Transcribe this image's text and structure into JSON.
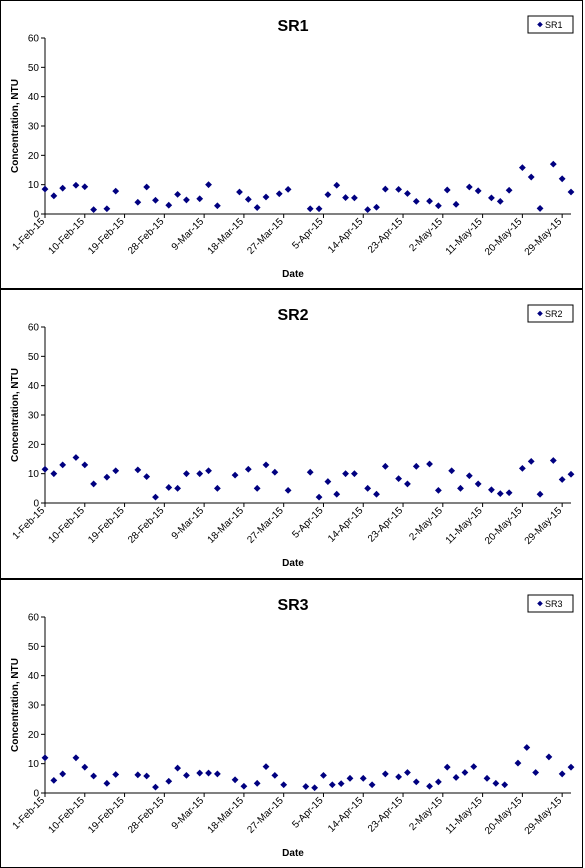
{
  "x_ticks": [
    "1-Feb-15",
    "10-Feb-15",
    "19-Feb-15",
    "28-Feb-15",
    "9-Mar-15",
    "18-Mar-15",
    "27-Mar-15",
    "5-Apr-15",
    "14-Apr-15",
    "23-Apr-15",
    "2-May-15",
    "11-May-15",
    "20-May-15",
    "29-May-15"
  ],
  "y_ticks": [
    "0",
    "10",
    "20",
    "30",
    "40",
    "50",
    "60"
  ],
  "colors": {
    "marker": "#000080"
  },
  "chart_data": [
    {
      "type": "scatter",
      "title": "SR1",
      "xlabel": "Date",
      "ylabel": "Concentration, NTU",
      "ylim": [
        0,
        60
      ],
      "xlim": [
        "2015-02-01",
        "2015-05-31"
      ],
      "legend": "top-right",
      "grid": false,
      "series": [
        {
          "name": "SR1",
          "points": [
            [
              "2015-02-01",
              8.5
            ],
            [
              "2015-02-03",
              6.2
            ],
            [
              "2015-02-05",
              8.8
            ],
            [
              "2015-02-08",
              9.8
            ],
            [
              "2015-02-10",
              9.3
            ],
            [
              "2015-02-12",
              1.5
            ],
            [
              "2015-02-15",
              1.8
            ],
            [
              "2015-02-17",
              7.8
            ],
            [
              "2015-02-22",
              4.0
            ],
            [
              "2015-02-24",
              9.2
            ],
            [
              "2015-02-26",
              4.7
            ],
            [
              "2015-03-01",
              3.0
            ],
            [
              "2015-03-03",
              6.7
            ],
            [
              "2015-03-05",
              4.8
            ],
            [
              "2015-03-08",
              5.2
            ],
            [
              "2015-03-10",
              10.0
            ],
            [
              "2015-03-12",
              2.8
            ],
            [
              "2015-03-17",
              7.5
            ],
            [
              "2015-03-19",
              5.0
            ],
            [
              "2015-03-21",
              2.2
            ],
            [
              "2015-03-23",
              5.8
            ],
            [
              "2015-03-26",
              6.9
            ],
            [
              "2015-03-28",
              8.4
            ],
            [
              "2015-04-02",
              1.8
            ],
            [
              "2015-04-04",
              1.8
            ],
            [
              "2015-04-06",
              6.6
            ],
            [
              "2015-04-08",
              9.8
            ],
            [
              "2015-04-10",
              5.6
            ],
            [
              "2015-04-12",
              5.5
            ],
            [
              "2015-04-15",
              1.5
            ],
            [
              "2015-04-17",
              2.3
            ],
            [
              "2015-04-19",
              8.5
            ],
            [
              "2015-04-22",
              8.4
            ],
            [
              "2015-04-24",
              7.0
            ],
            [
              "2015-04-26",
              4.3
            ],
            [
              "2015-04-29",
              4.4
            ],
            [
              "2015-05-01",
              2.8
            ],
            [
              "2015-05-03",
              8.2
            ],
            [
              "2015-05-05",
              3.3
            ],
            [
              "2015-05-08",
              9.2
            ],
            [
              "2015-05-10",
              7.9
            ],
            [
              "2015-05-13",
              5.5
            ],
            [
              "2015-05-15",
              4.3
            ],
            [
              "2015-05-17",
              8.1
            ],
            [
              "2015-05-20",
              15.8
            ],
            [
              "2015-05-22",
              12.6
            ],
            [
              "2015-05-24",
              1.9
            ],
            [
              "2015-05-27",
              17.0
            ],
            [
              "2015-05-29",
              12.0
            ],
            [
              "2015-05-31",
              7.5
            ]
          ]
        }
      ]
    },
    {
      "type": "scatter",
      "title": "SR2",
      "xlabel": "Date",
      "ylabel": "Concentration, NTU",
      "ylim": [
        0,
        60
      ],
      "xlim": [
        "2015-02-01",
        "2015-05-31"
      ],
      "legend": "top-right",
      "grid": false,
      "series": [
        {
          "name": "SR2",
          "points": [
            [
              "2015-02-01",
              11.5
            ],
            [
              "2015-02-03",
              10.0
            ],
            [
              "2015-02-05",
              13.0
            ],
            [
              "2015-02-08",
              15.5
            ],
            [
              "2015-02-10",
              13.0
            ],
            [
              "2015-02-12",
              6.5
            ],
            [
              "2015-02-15",
              8.8
            ],
            [
              "2015-02-17",
              11.0
            ],
            [
              "2015-02-22",
              11.3
            ],
            [
              "2015-02-24",
              9.0
            ],
            [
              "2015-02-26",
              2.0
            ],
            [
              "2015-03-01",
              5.3
            ],
            [
              "2015-03-03",
              5.0
            ],
            [
              "2015-03-05",
              10.0
            ],
            [
              "2015-03-08",
              10.0
            ],
            [
              "2015-03-10",
              11.0
            ],
            [
              "2015-03-12",
              5.0
            ],
            [
              "2015-03-16",
              9.5
            ],
            [
              "2015-03-19",
              11.5
            ],
            [
              "2015-03-21",
              5.0
            ],
            [
              "2015-03-23",
              13.0
            ],
            [
              "2015-03-25",
              10.5
            ],
            [
              "2015-03-28",
              4.3
            ],
            [
              "2015-04-02",
              10.5
            ],
            [
              "2015-04-04",
              2.0
            ],
            [
              "2015-04-06",
              7.3
            ],
            [
              "2015-04-08",
              3.0
            ],
            [
              "2015-04-10",
              10.0
            ],
            [
              "2015-04-12",
              10.0
            ],
            [
              "2015-04-15",
              5.0
            ],
            [
              "2015-04-17",
              3.0
            ],
            [
              "2015-04-19",
              12.5
            ],
            [
              "2015-04-22",
              8.3
            ],
            [
              "2015-04-24",
              6.5
            ],
            [
              "2015-04-26",
              12.5
            ],
            [
              "2015-04-29",
              13.3
            ],
            [
              "2015-05-01",
              4.3
            ],
            [
              "2015-05-04",
              11.0
            ],
            [
              "2015-05-06",
              5.0
            ],
            [
              "2015-05-08",
              9.3
            ],
            [
              "2015-05-10",
              6.5
            ],
            [
              "2015-05-13",
              4.5
            ],
            [
              "2015-05-15",
              3.2
            ],
            [
              "2015-05-17",
              3.5
            ],
            [
              "2015-05-20",
              11.8
            ],
            [
              "2015-05-22",
              14.2
            ],
            [
              "2015-05-24",
              3.0
            ],
            [
              "2015-05-27",
              14.5
            ],
            [
              "2015-05-29",
              8.0
            ],
            [
              "2015-05-31",
              9.8
            ]
          ]
        }
      ]
    },
    {
      "type": "scatter",
      "title": "SR3",
      "xlabel": "Date",
      "ylabel": "Concentration, NTU",
      "ylim": [
        0,
        60
      ],
      "xlim": [
        "2015-02-01",
        "2015-05-31"
      ],
      "legend": "top-right",
      "grid": false,
      "series": [
        {
          "name": "SR3",
          "points": [
            [
              "2015-02-01",
              12.0
            ],
            [
              "2015-02-03",
              4.3
            ],
            [
              "2015-02-05",
              6.5
            ],
            [
              "2015-02-08",
              12.0
            ],
            [
              "2015-02-10",
              8.8
            ],
            [
              "2015-02-12",
              5.8
            ],
            [
              "2015-02-15",
              3.3
            ],
            [
              "2015-02-17",
              6.3
            ],
            [
              "2015-02-22",
              6.2
            ],
            [
              "2015-02-24",
              5.8
            ],
            [
              "2015-02-26",
              2.0
            ],
            [
              "2015-03-01",
              4.0
            ],
            [
              "2015-03-03",
              8.5
            ],
            [
              "2015-03-05",
              6.0
            ],
            [
              "2015-03-08",
              6.8
            ],
            [
              "2015-03-10",
              6.8
            ],
            [
              "2015-03-12",
              6.5
            ],
            [
              "2015-03-16",
              4.5
            ],
            [
              "2015-03-18",
              2.3
            ],
            [
              "2015-03-21",
              3.3
            ],
            [
              "2015-03-23",
              9.0
            ],
            [
              "2015-03-25",
              6.0
            ],
            [
              "2015-03-27",
              2.8
            ],
            [
              "2015-04-01",
              2.2
            ],
            [
              "2015-04-03",
              1.8
            ],
            [
              "2015-04-05",
              6.0
            ],
            [
              "2015-04-07",
              2.8
            ],
            [
              "2015-04-09",
              3.2
            ],
            [
              "2015-04-11",
              5.0
            ],
            [
              "2015-04-14",
              5.0
            ],
            [
              "2015-04-16",
              2.8
            ],
            [
              "2015-04-19",
              6.5
            ],
            [
              "2015-04-22",
              5.5
            ],
            [
              "2015-04-24",
              7.0
            ],
            [
              "2015-04-26",
              3.8
            ],
            [
              "2015-04-29",
              2.3
            ],
            [
              "2015-05-01",
              3.8
            ],
            [
              "2015-05-03",
              8.8
            ],
            [
              "2015-05-05",
              5.3
            ],
            [
              "2015-05-07",
              7.0
            ],
            [
              "2015-05-09",
              9.0
            ],
            [
              "2015-05-12",
              5.0
            ],
            [
              "2015-05-14",
              3.3
            ],
            [
              "2015-05-16",
              2.8
            ],
            [
              "2015-05-19",
              10.2
            ],
            [
              "2015-05-21",
              15.5
            ],
            [
              "2015-05-23",
              7.0
            ],
            [
              "2015-05-26",
              12.3
            ],
            [
              "2015-05-29",
              6.5
            ],
            [
              "2015-05-31",
              8.8
            ]
          ]
        }
      ]
    }
  ]
}
